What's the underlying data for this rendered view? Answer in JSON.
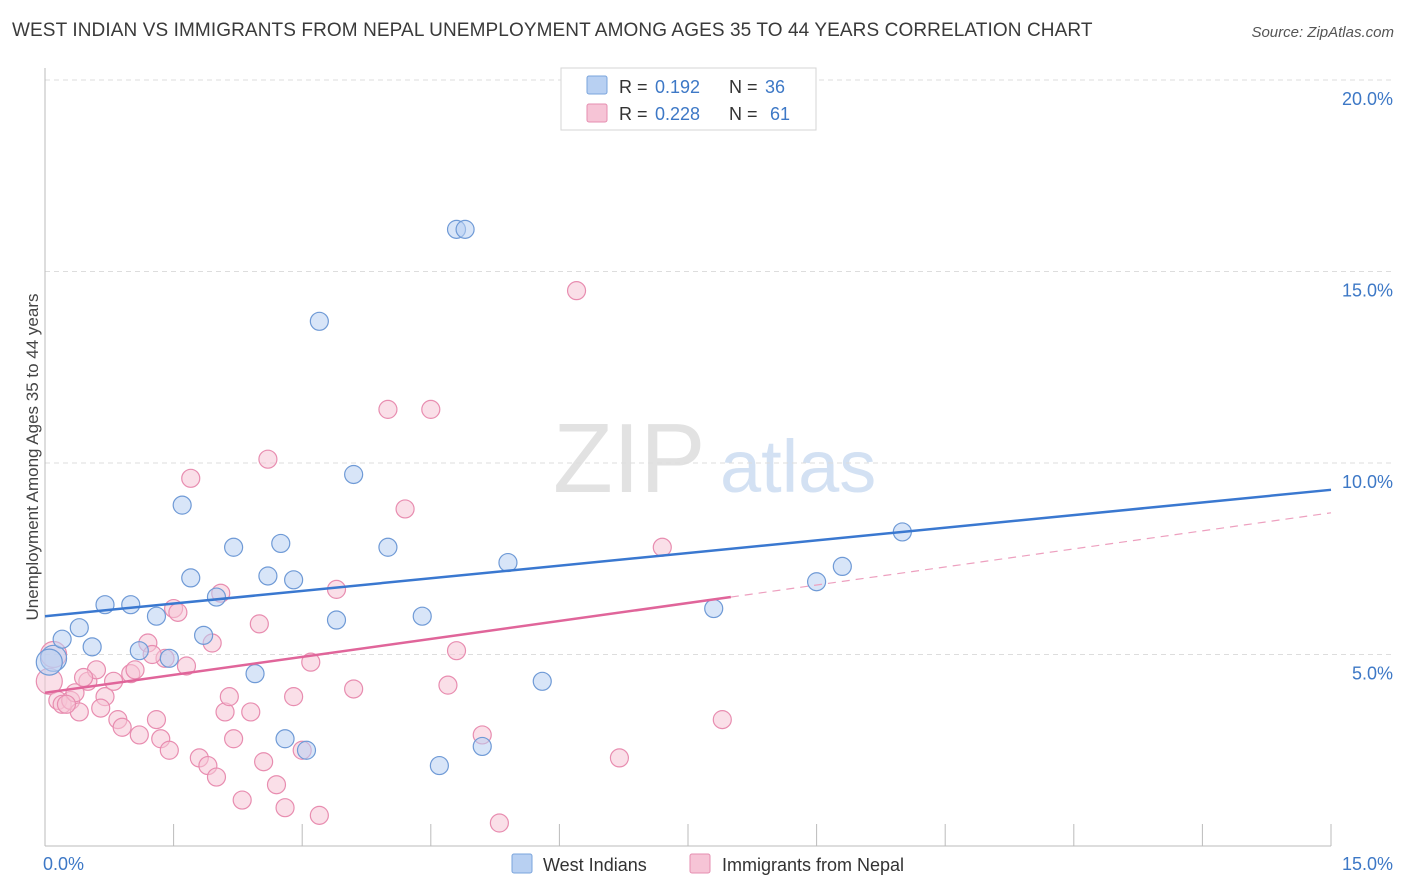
{
  "header": {
    "title": "WEST INDIAN VS IMMIGRANTS FROM NEPAL UNEMPLOYMENT AMONG AGES 35 TO 44 YEARS CORRELATION CHART",
    "source": "Source: ZipAtlas.com"
  },
  "watermark": {
    "zip": "ZIP",
    "atlas": "atlas"
  },
  "colors": {
    "blue": "#3a78d0",
    "blue_fill": "#b8d0f2",
    "pink": "#e0659a",
    "pink_fill": "#f6c4d6",
    "axis_label": "#3d78c6",
    "grid": "#dddddd"
  },
  "legend": {
    "rows": [
      {
        "r_label": "R =",
        "r_value": "0.192",
        "n_label": "N =",
        "n_value": "36"
      },
      {
        "r_label": "R =",
        "r_value": "0.228",
        "n_label": "N =",
        "n_value": "61"
      }
    ]
  },
  "bottom_legend": {
    "west_indians": "West Indians",
    "nepal": "Immigrants from Nepal"
  },
  "chart_data": {
    "type": "scatter",
    "title": "WEST INDIAN VS IMMIGRANTS FROM NEPAL UNEMPLOYMENT AMONG AGES 35 TO 44 YEARS CORRELATION CHART",
    "xlabel": "",
    "ylabel": "Unemployment Among Ages 35 to 44 years",
    "xlim": [
      0,
      15
    ],
    "ylim": [
      0,
      20
    ],
    "x_tick_labels": [
      "0.0%",
      "15.0%"
    ],
    "y_ticks": [
      5,
      10,
      15,
      20
    ],
    "y_tick_labels": [
      "5.0%",
      "10.0%",
      "15.0%",
      "20.0%"
    ],
    "series": [
      {
        "name": "West Indians",
        "r": 0.192,
        "n": 36,
        "trend": {
          "x": [
            0,
            15
          ],
          "y": [
            6.0,
            9.3
          ],
          "style": "solid"
        },
        "points": [
          [
            0.1,
            4.9
          ],
          [
            0.2,
            5.4
          ],
          [
            0.4,
            5.7
          ],
          [
            0.55,
            5.2
          ],
          [
            0.7,
            6.3
          ],
          [
            1.0,
            6.3
          ],
          [
            1.1,
            5.1
          ],
          [
            1.3,
            6.0
          ],
          [
            1.45,
            4.9
          ],
          [
            1.6,
            8.9
          ],
          [
            1.7,
            7.0
          ],
          [
            1.85,
            5.5
          ],
          [
            2.0,
            6.5
          ],
          [
            2.2,
            7.8
          ],
          [
            2.45,
            4.5
          ],
          [
            2.6,
            7.05
          ],
          [
            2.75,
            7.9
          ],
          [
            2.8,
            2.8
          ],
          [
            2.9,
            6.95
          ],
          [
            3.05,
            2.5
          ],
          [
            3.2,
            13.7
          ],
          [
            3.4,
            5.9
          ],
          [
            3.6,
            9.7
          ],
          [
            4.0,
            7.8
          ],
          [
            4.4,
            6.0
          ],
          [
            4.6,
            2.1
          ],
          [
            4.8,
            16.1
          ],
          [
            4.9,
            16.1
          ],
          [
            5.1,
            2.6
          ],
          [
            5.4,
            7.4
          ],
          [
            5.8,
            4.3
          ],
          [
            7.8,
            6.2
          ],
          [
            9.0,
            6.9
          ],
          [
            9.3,
            7.3
          ],
          [
            10.0,
            8.2
          ],
          [
            0.05,
            4.8
          ]
        ]
      },
      {
        "name": "Immigrants from Nepal",
        "r": 0.228,
        "n": 61,
        "trend": {
          "x": [
            0,
            8.0
          ],
          "y": [
            4.0,
            6.5
          ],
          "style": "solid"
        },
        "trend_extension": {
          "x": [
            8.0,
            15
          ],
          "y": [
            6.5,
            8.7
          ],
          "style": "dashed"
        },
        "points": [
          [
            0.05,
            4.3
          ],
          [
            0.1,
            5.0
          ],
          [
            0.15,
            3.8
          ],
          [
            0.2,
            3.7
          ],
          [
            0.3,
            3.8
          ],
          [
            0.4,
            3.5
          ],
          [
            0.5,
            4.3
          ],
          [
            0.6,
            4.6
          ],
          [
            0.7,
            3.9
          ],
          [
            0.8,
            4.3
          ],
          [
            0.85,
            3.3
          ],
          [
            0.9,
            3.1
          ],
          [
            1.0,
            4.5
          ],
          [
            1.05,
            4.6
          ],
          [
            1.1,
            2.9
          ],
          [
            1.2,
            5.3
          ],
          [
            1.3,
            3.3
          ],
          [
            1.35,
            2.8
          ],
          [
            1.4,
            4.9
          ],
          [
            1.5,
            6.2
          ],
          [
            1.55,
            6.1
          ],
          [
            1.65,
            4.7
          ],
          [
            1.7,
            9.6
          ],
          [
            1.8,
            2.3
          ],
          [
            1.9,
            2.1
          ],
          [
            1.95,
            5.3
          ],
          [
            2.0,
            1.8
          ],
          [
            2.05,
            6.6
          ],
          [
            2.1,
            3.5
          ],
          [
            2.2,
            2.8
          ],
          [
            2.3,
            1.2
          ],
          [
            2.4,
            3.5
          ],
          [
            2.5,
            5.8
          ],
          [
            2.55,
            2.2
          ],
          [
            2.6,
            10.1
          ],
          [
            2.7,
            1.6
          ],
          [
            2.8,
            1.0
          ],
          [
            2.9,
            3.9
          ],
          [
            3.0,
            2.5
          ],
          [
            3.1,
            4.8
          ],
          [
            3.2,
            0.8
          ],
          [
            3.4,
            6.7
          ],
          [
            3.6,
            4.1
          ],
          [
            4.0,
            11.4
          ],
          [
            4.2,
            8.8
          ],
          [
            4.5,
            11.4
          ],
          [
            4.7,
            4.2
          ],
          [
            4.8,
            5.1
          ],
          [
            5.1,
            2.9
          ],
          [
            5.3,
            0.6
          ],
          [
            6.2,
            14.5
          ],
          [
            6.7,
            2.3
          ],
          [
            7.2,
            7.8
          ],
          [
            7.9,
            3.3
          ],
          [
            0.35,
            4.0
          ],
          [
            0.65,
            3.6
          ],
          [
            1.25,
            5.0
          ],
          [
            0.25,
            3.7
          ],
          [
            0.45,
            4.4
          ],
          [
            2.15,
            3.9
          ],
          [
            1.45,
            2.5
          ]
        ]
      }
    ]
  }
}
